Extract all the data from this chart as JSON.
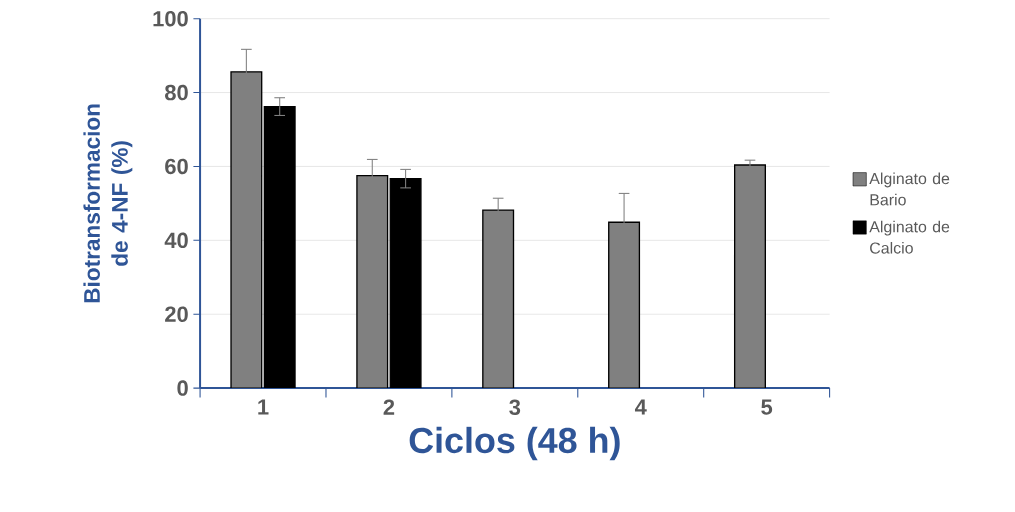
{
  "chart_data": {
    "type": "bar",
    "xlabel": "Ciclos (48 h)",
    "ylabel": "Biotransformacion de 4-NF (%)",
    "categories": [
      "1",
      "2",
      "3",
      "4",
      "5"
    ],
    "series": [
      {
        "name": "Alginato de Bario",
        "color": "#808080",
        "values": [
          85.6,
          57.5,
          48.2,
          44.9,
          60.4
        ],
        "errors": [
          6.1,
          4.4,
          3.2,
          7.8,
          1.3
        ]
      },
      {
        "name": "Alginato de Calcio",
        "color": "#000000",
        "values": [
          76.2,
          56.7,
          null,
          null,
          null
        ],
        "errors": [
          2.4,
          2.5,
          null,
          null,
          null
        ]
      }
    ],
    "ylim": [
      0,
      100
    ],
    "yticks": [
      0,
      20,
      40,
      60,
      80,
      100
    ],
    "grid": "y",
    "legend": "right"
  }
}
